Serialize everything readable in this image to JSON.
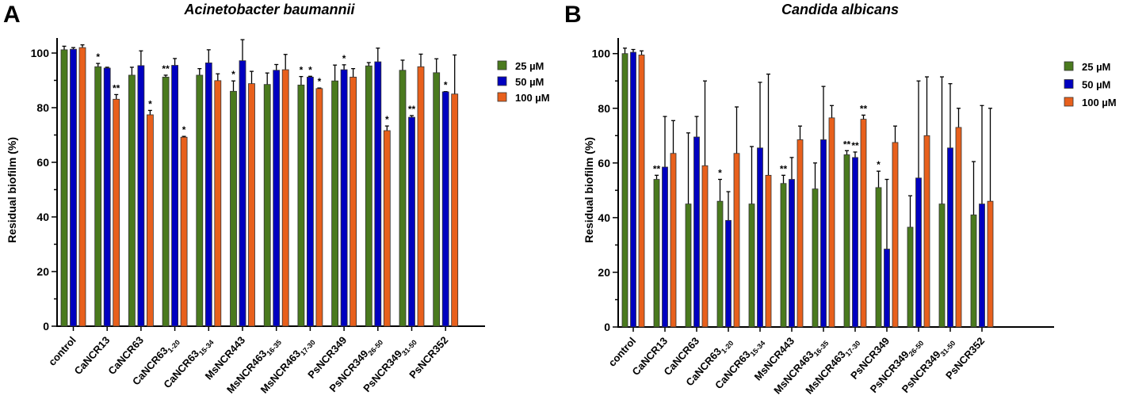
{
  "chart_data": [
    {
      "type": "bar",
      "panel_label": "A",
      "title": "Acinetobacter baumannii",
      "xlabel": "",
      "ylabel": "Residual biofilm (%)",
      "ylim": [
        0,
        105
      ],
      "yticks": [
        0,
        20,
        40,
        60,
        80,
        100
      ],
      "grid": false,
      "legend_position": "right",
      "categories": [
        {
          "name": "control",
          "sub": ""
        },
        {
          "name": "CaNCR13",
          "sub": ""
        },
        {
          "name": "CaNCR63",
          "sub": ""
        },
        {
          "name": "CaNCR63",
          "sub": "1-20"
        },
        {
          "name": "CaNCR63",
          "sub": "15-34"
        },
        {
          "name": "MsNCR443",
          "sub": ""
        },
        {
          "name": "MsNCR463",
          "sub": "16-35"
        },
        {
          "name": "MsNCR463",
          "sub": "17-30"
        },
        {
          "name": "PsNCR349",
          "sub": ""
        },
        {
          "name": "PsNCR349",
          "sub": "26-50"
        },
        {
          "name": "PsNCR349",
          "sub": "31-50"
        },
        {
          "name": "PsNCR352",
          "sub": ""
        }
      ],
      "series": [
        {
          "name": "25 µM",
          "color": "#4a7a1e",
          "values": [
            101.2,
            95.0,
            91.9,
            91.2,
            91.9,
            86.0,
            88.5,
            88.3,
            89.8,
            95.3,
            93.7,
            92.8
          ],
          "error_top": [
            102.5,
            96.2,
            94.8,
            91.9,
            94.3,
            89.8,
            92.7,
            91.4,
            95.6,
            96.5,
            97.4,
            97.9
          ],
          "significance": [
            "",
            "*",
            "",
            "**",
            "",
            "*",
            "",
            "*",
            "",
            "",
            "",
            ""
          ]
        },
        {
          "name": "50 µM",
          "color": "#0000c0",
          "values": [
            101.4,
            94.5,
            95.4,
            95.5,
            96.4,
            97.2,
            93.7,
            91.2,
            93.9,
            96.8,
            76.5,
            85.8
          ],
          "error_top": [
            102.0,
            94.8,
            100.8,
            98.0,
            101.2,
            104.9,
            95.8,
            91.5,
            95.7,
            101.8,
            77.1,
            85.9
          ],
          "significance": [
            "",
            "",
            "",
            "",
            "",
            "",
            "",
            "*",
            "*",
            "",
            "**",
            "*"
          ]
        },
        {
          "name": "100 µM",
          "color": "#e8601c",
          "values": [
            102.0,
            83.1,
            77.4,
            69.2,
            89.9,
            88.8,
            93.9,
            87.0,
            91.2,
            71.6,
            95.0,
            85.0
          ],
          "error_top": [
            103.0,
            84.8,
            79.0,
            69.5,
            92.4,
            93.3,
            99.5,
            87.2,
            94.3,
            73.3,
            99.6,
            99.3
          ],
          "significance": [
            "",
            "**",
            "*",
            "*",
            "",
            "",
            "",
            "*",
            "",
            "*",
            "",
            ""
          ]
        }
      ]
    },
    {
      "type": "bar",
      "panel_label": "B",
      "title": "Candida albicans",
      "xlabel": "",
      "ylabel": "Residual biofilm (%)",
      "ylim": [
        0,
        105
      ],
      "yticks": [
        0,
        20,
        40,
        60,
        80,
        100
      ],
      "grid": false,
      "legend_position": "right",
      "categories": [
        {
          "name": "control",
          "sub": ""
        },
        {
          "name": "CaNCR13",
          "sub": ""
        },
        {
          "name": "CaNCR63",
          "sub": ""
        },
        {
          "name": "CaNCR63",
          "sub": "1-20"
        },
        {
          "name": "CaNCR63",
          "sub": "15-34"
        },
        {
          "name": "MsNCR443",
          "sub": ""
        },
        {
          "name": "MsNCR463",
          "sub": "16-35"
        },
        {
          "name": "MsNCR463",
          "sub": "17-30"
        },
        {
          "name": "PsNCR349",
          "sub": ""
        },
        {
          "name": "PsNCR349",
          "sub": "26-50"
        },
        {
          "name": "PsNCR349",
          "sub": "31-50"
        },
        {
          "name": "PsNCR352",
          "sub": ""
        }
      ],
      "series": [
        {
          "name": "25 µM",
          "color": "#4a7a1e",
          "values": [
            100.0,
            54.0,
            45.0,
            46.0,
            45.0,
            52.5,
            50.5,
            63.0,
            51.0,
            36.5,
            45.0,
            41.0
          ],
          "error_top": [
            102.0,
            55.5,
            71.0,
            54.0,
            66.0,
            55.5,
            60.0,
            64.5,
            57.0,
            48.0,
            91.5,
            60.5
          ],
          "significance": [
            "",
            "**",
            "",
            "*",
            "",
            "**",
            "",
            "**",
            "*",
            "",
            "",
            ""
          ]
        },
        {
          "name": "50 µM",
          "color": "#0000c0",
          "values": [
            100.5,
            58.5,
            69.5,
            39.0,
            65.5,
            54.0,
            68.5,
            62.0,
            28.5,
            54.5,
            65.5,
            45.0
          ],
          "error_top": [
            101.5,
            77.0,
            77.0,
            49.5,
            89.5,
            62.0,
            88.0,
            64.0,
            54.0,
            90.0,
            89.0,
            81.0
          ],
          "significance": [
            "",
            "",
            "",
            "",
            "",
            "",
            "",
            "**",
            "",
            "",
            "",
            ""
          ]
        },
        {
          "name": "100 µM",
          "color": "#e8601c",
          "values": [
            99.5,
            63.5,
            59.0,
            63.5,
            55.5,
            68.5,
            76.5,
            76.0,
            67.5,
            70.0,
            73.0,
            46.0
          ],
          "error_top": [
            101.0,
            75.5,
            90.0,
            80.5,
            92.5,
            73.5,
            81.0,
            77.5,
            73.5,
            91.5,
            80.0,
            80.0
          ],
          "significance": [
            "",
            "",
            "",
            "",
            "",
            "",
            "",
            "**",
            "",
            "",
            "",
            ""
          ]
        }
      ]
    }
  ]
}
